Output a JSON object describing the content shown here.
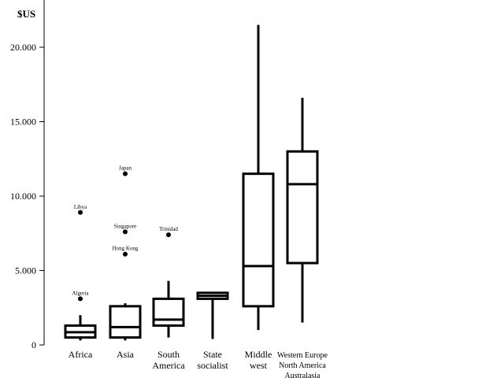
{
  "chart_data": {
    "type": "box",
    "ylabel": "$US",
    "ylim": [
      0,
      23000
    ],
    "yticks": [
      {
        "value": 0,
        "label": "0"
      },
      {
        "value": 5000,
        "label": "5.000"
      },
      {
        "value": 10000,
        "label": "10.000"
      },
      {
        "value": 15000,
        "label": "15.000"
      },
      {
        "value": 20000,
        "label": "20.000"
      }
    ],
    "categories": [
      {
        "label_lines": [
          "Africa"
        ],
        "whisker_low": 300,
        "q1": 500,
        "median": 850,
        "q3": 1300,
        "whisker_high": 2000,
        "outliers": [
          {
            "label": "Libya",
            "value": 8900
          },
          {
            "label": "Algeria",
            "value": 3100
          }
        ]
      },
      {
        "label_lines": [
          "Asia"
        ],
        "whisker_low": 300,
        "q1": 500,
        "median": 1200,
        "q3": 2600,
        "whisker_high": 2800,
        "outliers": [
          {
            "label": "Japan",
            "value": 11500
          },
          {
            "label": "Singapore",
            "value": 7600
          },
          {
            "label": "Hong Kong",
            "value": 6100
          }
        ]
      },
      {
        "label_lines": [
          "South",
          "America"
        ],
        "whisker_low": 500,
        "q1": 1300,
        "median": 1700,
        "q3": 3100,
        "whisker_high": 4300,
        "outliers": [
          {
            "label": "Trinidad",
            "value": 7400
          }
        ]
      },
      {
        "label_lines": [
          "State",
          "socialist"
        ],
        "whisker_low": 400,
        "q1": 3100,
        "median": 3300,
        "q3": 3500,
        "whisker_high": 3500,
        "outliers": []
      },
      {
        "label_lines": [
          "Middle",
          "west"
        ],
        "whisker_low": 1000,
        "q1": 2600,
        "median": 5300,
        "q3": 11500,
        "whisker_high": 21500,
        "outliers": []
      },
      {
        "label_lines": [
          "Western Europe",
          "North America",
          "Australasia"
        ],
        "whisker_low": 1500,
        "q1": 5500,
        "median": 10800,
        "q3": 13000,
        "whisker_high": 16600,
        "outliers": []
      }
    ]
  }
}
